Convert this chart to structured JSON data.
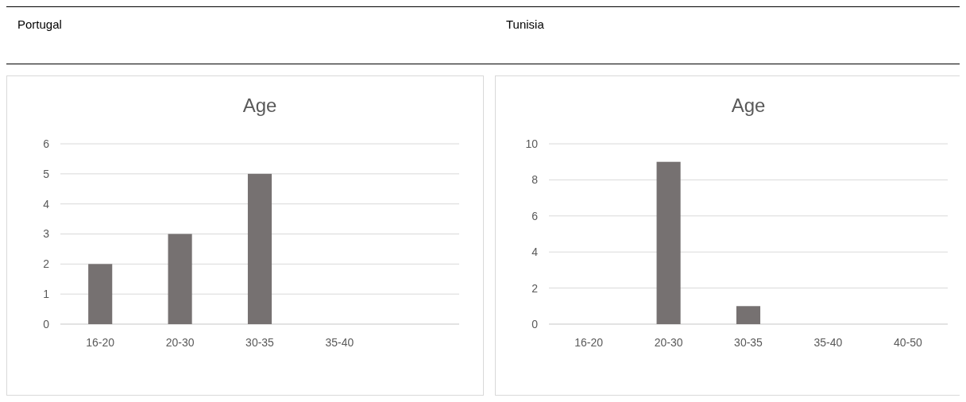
{
  "chart_data": [
    {
      "type": "bar",
      "subtitle": "Portugal",
      "title": "Age",
      "categories": [
        "16-20",
        "20-30",
        "30-35",
        "35-40",
        null
      ],
      "values": [
        2,
        3,
        5,
        0,
        null
      ],
      "color": "#767171",
      "ylim": [
        0,
        6
      ],
      "yticks": [
        0,
        1,
        2,
        3,
        4,
        5,
        6
      ],
      "grid": "y"
    },
    {
      "type": "bar",
      "subtitle": "Tunisia",
      "title": "Age",
      "categories": [
        "16-20",
        "20-30",
        "30-35",
        "35-40",
        "40-50"
      ],
      "values": [
        0,
        9,
        1,
        0,
        0
      ],
      "color": "#767171",
      "ylim": [
        0,
        10
      ],
      "yticks": [
        0,
        2,
        4,
        6,
        8,
        10
      ],
      "grid": "y"
    }
  ]
}
